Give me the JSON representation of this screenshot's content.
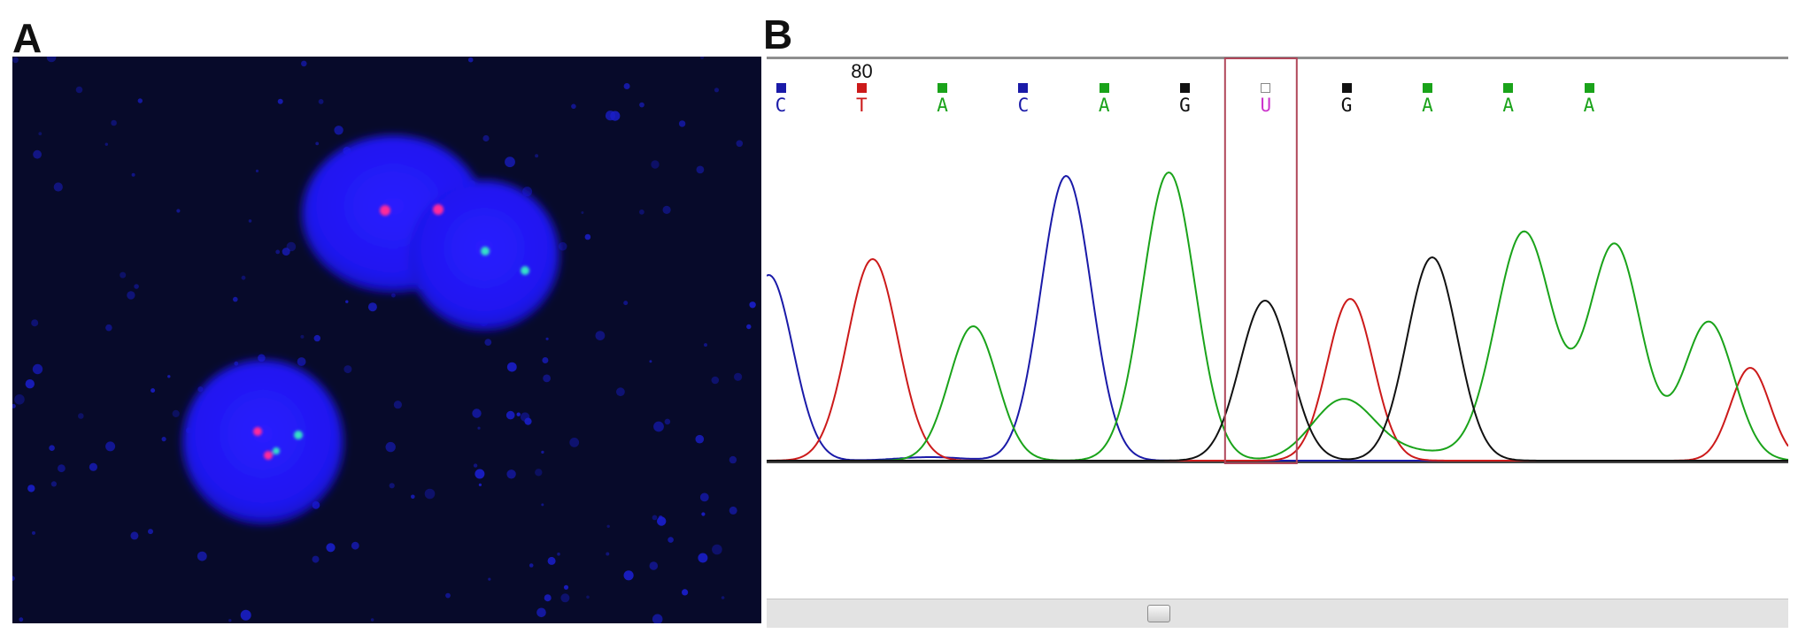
{
  "panel_a": {
    "label": "A"
  },
  "panel_b": {
    "label": "B",
    "position_marker": "80",
    "highlighted_base_index": 6,
    "colors": {
      "A": "#1aa31a",
      "C": "#1a1aa8",
      "G": "#111111",
      "T": "#cc1a1a",
      "U": "#cc33cc",
      "highlight": "#b0475a"
    },
    "bases": [
      {
        "letter": "C",
        "color": "#1a1aa8"
      },
      {
        "letter": "T",
        "color": "#cc1a1a"
      },
      {
        "letter": "A",
        "color": "#1aa31a"
      },
      {
        "letter": "C",
        "color": "#1a1aa8"
      },
      {
        "letter": "A",
        "color": "#1aa31a"
      },
      {
        "letter": "G",
        "color": "#111111"
      },
      {
        "letter": "U",
        "color": "#cc33cc"
      },
      {
        "letter": "G",
        "color": "#111111"
      },
      {
        "letter": "A",
        "color": "#1aa31a"
      },
      {
        "letter": "A",
        "color": "#1aa31a"
      },
      {
        "letter": "A",
        "color": "#1aa31a"
      }
    ]
  }
}
